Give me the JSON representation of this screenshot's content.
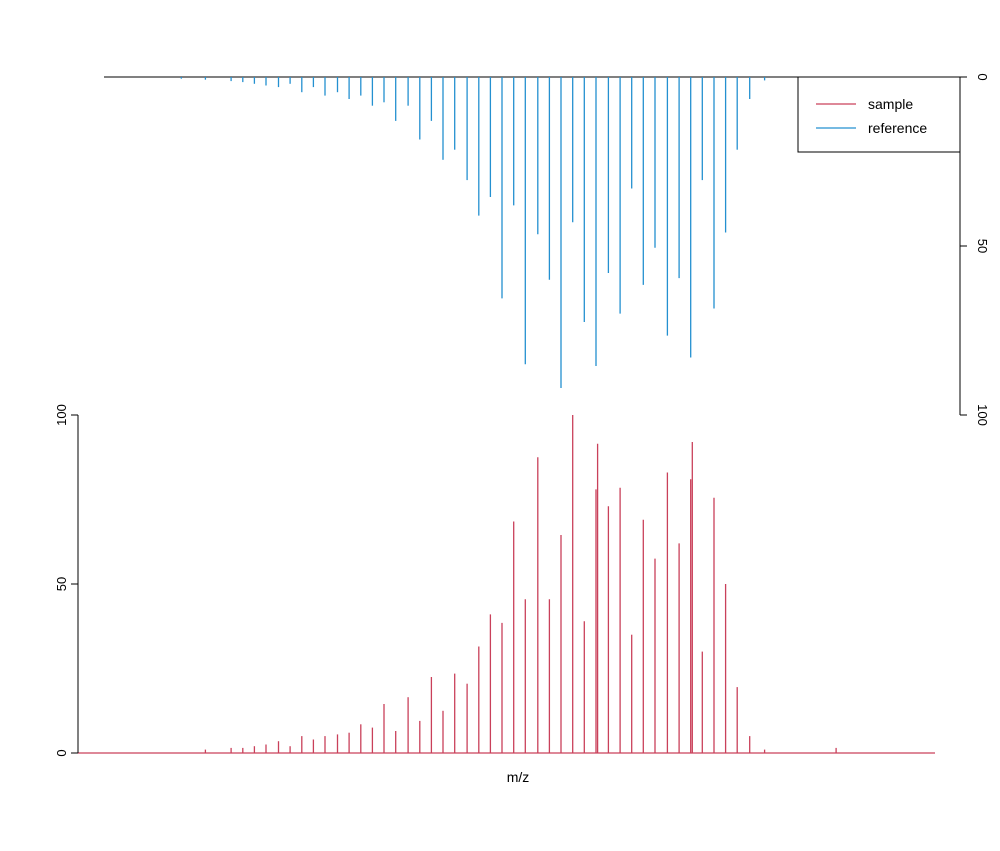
{
  "chart_data": {
    "type": "bar",
    "xlabel": "m/z",
    "legend": {
      "placement": "top-right",
      "entries": [
        {
          "name": "sample",
          "color": "#c9405a"
        },
        {
          "name": "reference",
          "color": "#2490d0"
        }
      ]
    },
    "x_range": [
      0,
      100
    ],
    "sample": {
      "name": "sample",
      "color": "#c9405a",
      "ylim": [
        0,
        100
      ],
      "yticks": [
        "0",
        "50",
        "100"
      ],
      "peaks": [
        [
          12.2,
          1.0
        ],
        [
          15.3,
          1.5
        ],
        [
          16.7,
          1.5
        ],
        [
          18.1,
          2.0
        ],
        [
          19.5,
          2.5
        ],
        [
          21.0,
          3.5
        ],
        [
          22.4,
          2.0
        ],
        [
          23.8,
          5.0
        ],
        [
          25.2,
          4.0
        ],
        [
          26.6,
          5.0
        ],
        [
          28.1,
          5.5
        ],
        [
          29.5,
          6.0
        ],
        [
          30.9,
          8.5
        ],
        [
          32.3,
          7.5
        ],
        [
          33.7,
          14.5
        ],
        [
          35.1,
          6.5
        ],
        [
          36.6,
          16.5
        ],
        [
          38.0,
          9.5
        ],
        [
          39.4,
          22.5
        ],
        [
          40.8,
          12.5
        ],
        [
          42.2,
          23.5
        ],
        [
          43.7,
          20.5
        ],
        [
          45.1,
          31.5
        ],
        [
          46.5,
          41.0
        ],
        [
          47.9,
          38.5
        ],
        [
          49.3,
          68.5
        ],
        [
          50.7,
          45.5
        ],
        [
          52.2,
          87.5
        ],
        [
          53.6,
          45.5
        ],
        [
          55.0,
          64.5
        ],
        [
          56.4,
          100.0
        ],
        [
          57.8,
          39.0
        ],
        [
          59.2,
          78.0
        ],
        [
          59.4,
          91.5
        ],
        [
          60.7,
          73.0
        ],
        [
          62.1,
          78.5
        ],
        [
          63.5,
          35.0
        ],
        [
          64.9,
          69.0
        ],
        [
          66.3,
          57.5
        ],
        [
          67.8,
          83.0
        ],
        [
          69.2,
          62.0
        ],
        [
          70.6,
          81.0
        ],
        [
          70.8,
          92.0
        ],
        [
          72.0,
          30.0
        ],
        [
          73.4,
          75.5
        ],
        [
          74.8,
          50.0
        ],
        [
          76.2,
          19.5
        ],
        [
          77.7,
          5.0
        ],
        [
          79.5,
          1.0
        ],
        [
          88.1,
          1.5
        ]
      ]
    },
    "reference": {
      "name": "reference",
      "color": "#2490d0",
      "ylim": [
        0,
        100
      ],
      "yticks": [
        "0",
        "50",
        "100"
      ],
      "peaks": [
        [
          9.3,
          0.5
        ],
        [
          12.2,
          0.8
        ],
        [
          15.3,
          1.2
        ],
        [
          16.7,
          1.5
        ],
        [
          18.1,
          2.0
        ],
        [
          19.5,
          2.5
        ],
        [
          21.0,
          3.0
        ],
        [
          22.4,
          2.0
        ],
        [
          23.8,
          4.5
        ],
        [
          25.2,
          3.0
        ],
        [
          26.6,
          5.5
        ],
        [
          28.1,
          4.5
        ],
        [
          29.5,
          6.5
        ],
        [
          30.9,
          5.5
        ],
        [
          32.3,
          8.5
        ],
        [
          33.7,
          7.5
        ],
        [
          35.1,
          13.0
        ],
        [
          36.6,
          8.5
        ],
        [
          38.0,
          18.5
        ],
        [
          39.4,
          13.0
        ],
        [
          40.8,
          24.5
        ],
        [
          42.2,
          21.5
        ],
        [
          43.7,
          30.5
        ],
        [
          45.1,
          41.0
        ],
        [
          46.5,
          35.5
        ],
        [
          47.9,
          65.5
        ],
        [
          49.3,
          38.0
        ],
        [
          50.7,
          85.0
        ],
        [
          52.2,
          46.5
        ],
        [
          53.6,
          60.0
        ],
        [
          55.0,
          92.0
        ],
        [
          56.4,
          43.0
        ],
        [
          57.8,
          72.5
        ],
        [
          59.2,
          85.5
        ],
        [
          60.7,
          58.0
        ],
        [
          62.1,
          70.0
        ],
        [
          63.5,
          33.0
        ],
        [
          64.9,
          61.5
        ],
        [
          66.3,
          50.5
        ],
        [
          67.8,
          76.5
        ],
        [
          69.2,
          59.5
        ],
        [
          70.6,
          83.0
        ],
        [
          72.0,
          30.5
        ],
        [
          73.4,
          68.5
        ],
        [
          74.8,
          46.0
        ],
        [
          76.2,
          21.5
        ],
        [
          77.7,
          6.5
        ],
        [
          79.5,
          1.0
        ]
      ]
    }
  }
}
